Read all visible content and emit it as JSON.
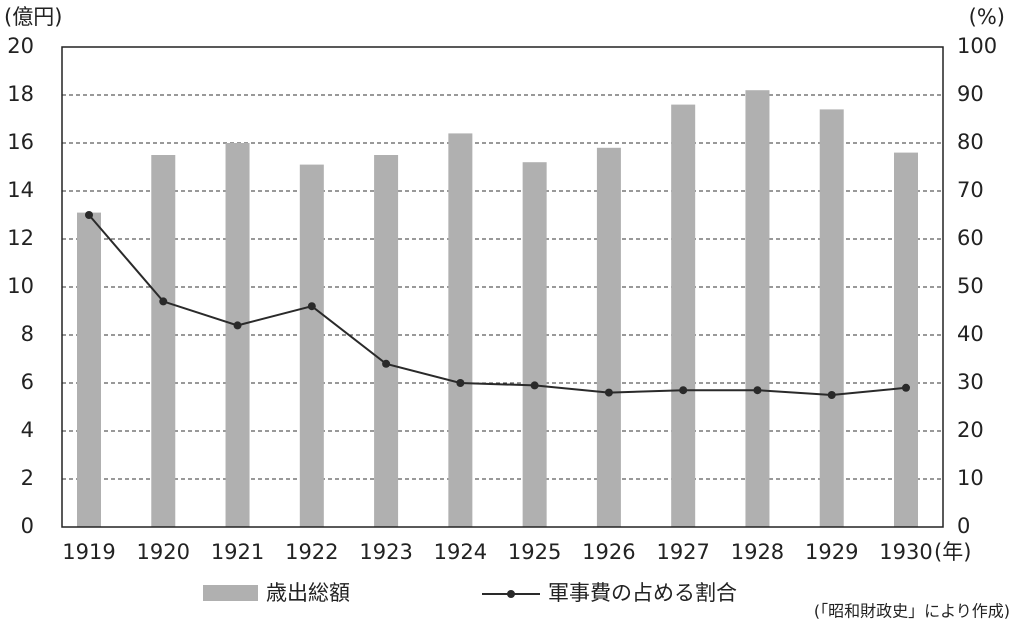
{
  "chart_data": {
    "type": "bar-line",
    "y_label": "(億円)",
    "y2_label": "(%)",
    "x_unit": "(年)",
    "categories": [
      "1919",
      "1920",
      "1921",
      "1922",
      "1923",
      "1924",
      "1925",
      "1926",
      "1927",
      "1928",
      "1929",
      "1930"
    ],
    "series": [
      {
        "name": "歳出総額",
        "color": "#b0b0b0",
        "type": "bar",
        "values": [
          13.1,
          15.5,
          16.0,
          15.1,
          15.5,
          16.4,
          15.2,
          15.8,
          17.6,
          18.2,
          17.4,
          15.6
        ]
      },
      {
        "name": "軍事費の占める割合",
        "color": "#2a2a2a",
        "type": "line",
        "axis": "y2",
        "values": [
          65,
          47,
          42,
          46,
          34,
          30,
          29.5,
          28,
          28.5,
          28.5,
          27.5,
          29
        ]
      }
    ],
    "ylim": [
      0,
      20
    ],
    "yticks": [
      0,
      2,
      4,
      6,
      8,
      10,
      12,
      14,
      16,
      18,
      20
    ],
    "y2lim": [
      0,
      100
    ],
    "y2ticks": [
      0,
      10,
      20,
      30,
      40,
      50,
      60,
      70,
      80,
      90,
      100
    ],
    "grid": true,
    "source": "(「昭和財政史」により作成)"
  }
}
